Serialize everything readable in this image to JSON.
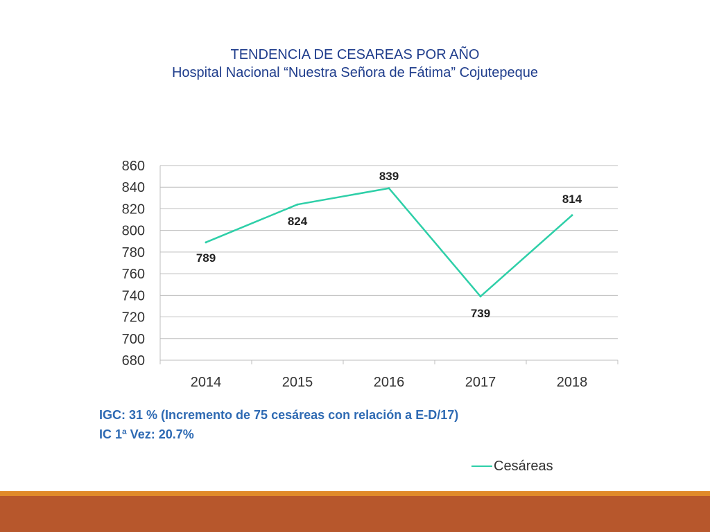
{
  "slide": {
    "title": "TENDENCIA DE CESAREAS POR AÑO",
    "subtitle": "Hospital Nacional “Nuestra Señora de Fátima” Cojutepeque",
    "notes": [
      "IGC: 31 % (Incremento de 75 cesáreas con relación a E-D/17)",
      "IC 1ª Vez: 20.7%"
    ],
    "colors": {
      "title": "#1f3d8c",
      "notes": "#2e6ab3",
      "footer_band": "#b7572c",
      "footer_thin": "#e08a2a"
    }
  },
  "chart_data": {
    "type": "line",
    "categories": [
      "2014",
      "2015",
      "2016",
      "2017",
      "2018"
    ],
    "series": [
      {
        "name": "Cesáreas",
        "values": [
          789,
          824,
          839,
          739,
          814
        ],
        "color": "#2ecfa8"
      }
    ],
    "ylim": [
      680,
      860
    ],
    "yticks": [
      680,
      700,
      720,
      740,
      760,
      780,
      800,
      820,
      840,
      860
    ],
    "grid": true,
    "data_labels": [
      "789",
      "824",
      "839",
      "739",
      "814"
    ],
    "legend": "bottom-right"
  }
}
